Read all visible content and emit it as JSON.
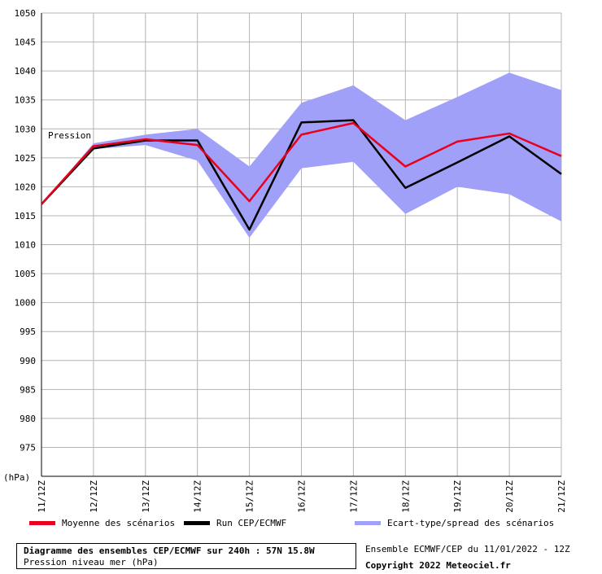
{
  "chart_data": {
    "type": "line",
    "y_label": "(hPa)",
    "annotation": "Pression",
    "ylim": [
      970,
      1050
    ],
    "y_ticks": [
      975,
      980,
      985,
      990,
      995,
      1000,
      1005,
      1010,
      1015,
      1020,
      1025,
      1030,
      1035,
      1040,
      1045,
      1050
    ],
    "grid": true,
    "categories": [
      "11/12Z",
      "12/12Z",
      "13/12Z",
      "14/12Z",
      "15/12Z",
      "16/12Z",
      "17/12Z",
      "18/12Z",
      "19/12Z",
      "20/12Z",
      "21/12Z"
    ],
    "spread": {
      "name": "Ecart-type/spread des scénarios",
      "color": "#a0a0f8",
      "upper": [
        1017,
        1027.5,
        1029,
        1030,
        1023.5,
        1034.5,
        1037.5,
        1031.5,
        1035.5,
        1039.7,
        1036.7
      ],
      "lower": [
        1017,
        1026.5,
        1027.2,
        1024.5,
        1011.2,
        1023.2,
        1024.3,
        1015.3,
        1020,
        1018.7,
        1014
      ]
    },
    "series": [
      {
        "name": "Moyenne des scénarios",
        "color": "#e8001c",
        "values": [
          1017,
          1027,
          1028.2,
          1027.2,
          1017.5,
          1029,
          1031,
          1023.5,
          1027.8,
          1029.2,
          1025.3
        ]
      },
      {
        "name": "Run CEP/ECMWF",
        "color": "#000000",
        "values": [
          1017,
          1026.6,
          1028,
          1028,
          1012.6,
          1031.1,
          1031.5,
          1019.8,
          1024.2,
          1028.7,
          1022.2
        ]
      }
    ]
  },
  "info": {
    "title": "Diagramme des ensembles CEP/ECMWF sur 240h : 57N 15.8W",
    "subtitle": "Pression niveau mer (hPa)",
    "run": "Ensemble ECMWF/CEP du 11/01/2022 - 12Z",
    "copyright": "Copyright 2022 Meteociel.fr"
  }
}
